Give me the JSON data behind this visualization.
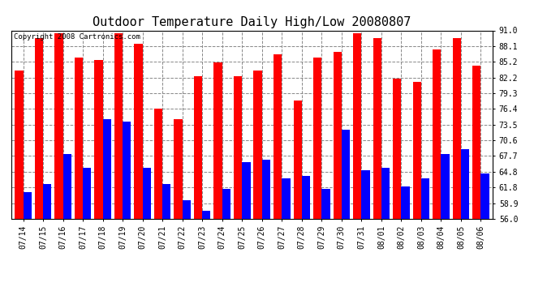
{
  "title": "Outdoor Temperature Daily High/Low 20080807",
  "copyright": "Copyright 2008 Cartronics.com",
  "dates": [
    "07/14",
    "07/15",
    "07/16",
    "07/17",
    "07/18",
    "07/19",
    "07/20",
    "07/21",
    "07/22",
    "07/23",
    "07/24",
    "07/25",
    "07/26",
    "07/27",
    "07/28",
    "07/29",
    "07/30",
    "07/31",
    "08/01",
    "08/02",
    "08/03",
    "08/04",
    "08/05",
    "08/06"
  ],
  "highs": [
    83.5,
    89.5,
    90.5,
    86.0,
    85.5,
    90.5,
    88.5,
    76.5,
    74.5,
    82.5,
    85.0,
    82.5,
    83.5,
    86.5,
    78.0,
    86.0,
    87.0,
    90.5,
    89.5,
    82.0,
    81.5,
    87.5,
    89.5,
    84.5
  ],
  "lows": [
    61.0,
    62.5,
    68.0,
    65.5,
    74.5,
    74.0,
    65.5,
    62.5,
    59.5,
    57.5,
    61.5,
    66.5,
    67.0,
    63.5,
    64.0,
    61.5,
    72.5,
    65.0,
    65.5,
    62.0,
    63.5,
    68.0,
    69.0,
    64.5
  ],
  "high_color": "#ff0000",
  "low_color": "#0000ff",
  "bg_color": "#ffffff",
  "plot_bg_color": "#ffffff",
  "grid_color": "#888888",
  "bar_width": 0.42,
  "ylim": [
    56.0,
    91.0
  ],
  "yticks": [
    56.0,
    58.9,
    61.8,
    64.8,
    67.7,
    70.6,
    73.5,
    76.4,
    79.3,
    82.2,
    85.2,
    88.1,
    91.0
  ],
  "title_fontsize": 11,
  "tick_fontsize": 7,
  "copyright_fontsize": 6.5
}
